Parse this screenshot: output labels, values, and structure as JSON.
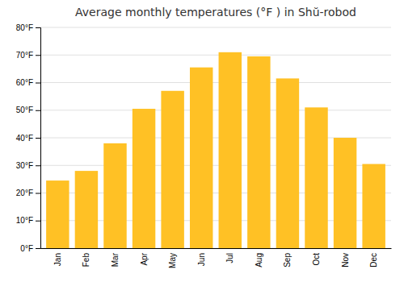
{
  "chart_data": {
    "type": "bar",
    "title": "Average monthly temperatures (°F ) in Shŭ-robod",
    "categories": [
      "Jan",
      "Feb",
      "Mar",
      "Apr",
      "May",
      "Jun",
      "Jul",
      "Aug",
      "Sep",
      "Oct",
      "Nov",
      "Dec"
    ],
    "values": [
      24.5,
      28,
      38,
      50.5,
      57,
      65.5,
      71,
      69.5,
      61.5,
      51,
      40,
      30.5
    ],
    "color": "#FFC125",
    "ylim": [
      0,
      80
    ],
    "yticks": [
      {
        "value": 0,
        "label": "0°F"
      },
      {
        "value": 10,
        "label": "10°F"
      },
      {
        "value": 20,
        "label": "20°F"
      },
      {
        "value": 30,
        "label": "30°F"
      },
      {
        "value": 40,
        "label": "40°F"
      },
      {
        "value": 50,
        "label": "50°F"
      },
      {
        "value": 60,
        "label": "60°F"
      },
      {
        "value": 70,
        "label": "70°F"
      },
      {
        "value": 80,
        "label": "80°F"
      }
    ],
    "grid": true
  }
}
